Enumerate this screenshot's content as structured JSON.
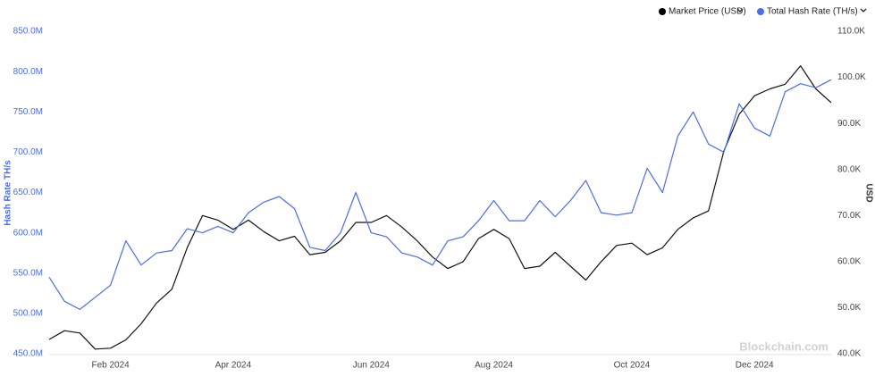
{
  "chart_data": {
    "type": "line",
    "ylabel": "Hash Rate TH/s",
    "y2label": "USD",
    "watermark": "Blockchain.com",
    "categories": [
      null,
      null,
      null,
      null,
      "Feb 2024",
      null,
      null,
      null,
      null,
      null,
      null,
      null,
      "Apr 2024",
      null,
      null,
      null,
      null,
      null,
      null,
      null,
      null,
      "Jun 2024",
      null,
      null,
      null,
      null,
      null,
      null,
      null,
      "Aug 2024",
      null,
      null,
      null,
      null,
      null,
      null,
      null,
      null,
      "Oct 2024",
      null,
      null,
      null,
      null,
      null,
      null,
      null,
      "Dec 2024",
      null,
      null,
      null,
      null,
      null
    ],
    "series": [
      {
        "name": "Market Price (USD)",
        "color": "#111111",
        "axis": "y2",
        "values": [
          43100,
          45000,
          44500,
          41000,
          41200,
          43000,
          46500,
          51000,
          54000,
          63000,
          70000,
          69000,
          67000,
          69000,
          66500,
          64500,
          65500,
          61500,
          62000,
          64500,
          68500,
          68500,
          70000,
          67500,
          64500,
          61000,
          58500,
          60000,
          65000,
          67000,
          65000,
          58500,
          59000,
          62000,
          59000,
          56000,
          60000,
          63500,
          64000,
          61500,
          63000,
          67000,
          69500,
          71000,
          84000,
          92000,
          96000,
          97500,
          98500,
          102500,
          97500,
          94500
        ]
      },
      {
        "name": "Total Hash Rate (TH/s)",
        "color": "#4a6cf0",
        "axis": "y",
        "values": [
          545000000,
          515000000,
          505000000,
          520000000,
          535000000,
          590000000,
          560000000,
          575000000,
          578000000,
          605000000,
          600000000,
          608000000,
          600000000,
          625000000,
          638000000,
          645000000,
          630000000,
          582000000,
          578000000,
          600000000,
          650000000,
          600000000,
          595000000,
          575000000,
          570000000,
          560000000,
          590000000,
          595000000,
          615000000,
          640000000,
          615000000,
          615000000,
          640000000,
          620000000,
          640000000,
          665000000,
          625000000,
          622000000,
          625000000,
          680000000,
          650000000,
          720000000,
          750000000,
          710000000,
          700000000,
          760000000,
          730000000,
          720000000,
          775000000,
          785000000,
          780000000,
          790000000
        ]
      }
    ],
    "ylim": [
      450000000,
      850000000
    ],
    "yticks": [
      {
        "value": 450000000,
        "label": "450.0M"
      },
      {
        "value": 500000000,
        "label": "500.0M"
      },
      {
        "value": 550000000,
        "label": "550.0M"
      },
      {
        "value": 600000000,
        "label": "600.0M"
      },
      {
        "value": 650000000,
        "label": "650.0M"
      },
      {
        "value": 700000000,
        "label": "700.0M"
      },
      {
        "value": 750000000,
        "label": "750.0M"
      },
      {
        "value": 800000000,
        "label": "800.0M"
      },
      {
        "value": 850000000,
        "label": "850.0M"
      }
    ],
    "y2lim": [
      40000,
      110000
    ],
    "y2ticks": [
      {
        "value": 40000,
        "label": "40.0K"
      },
      {
        "value": 50000,
        "label": "50.0K"
      },
      {
        "value": 60000,
        "label": "60.0K"
      },
      {
        "value": 70000,
        "label": "70.0K"
      },
      {
        "value": 80000,
        "label": "80.0K"
      },
      {
        "value": 90000,
        "label": "90.0K"
      },
      {
        "value": 100000,
        "label": "100.0K"
      },
      {
        "value": 110000,
        "label": "110.0K"
      }
    ],
    "grid": false
  }
}
